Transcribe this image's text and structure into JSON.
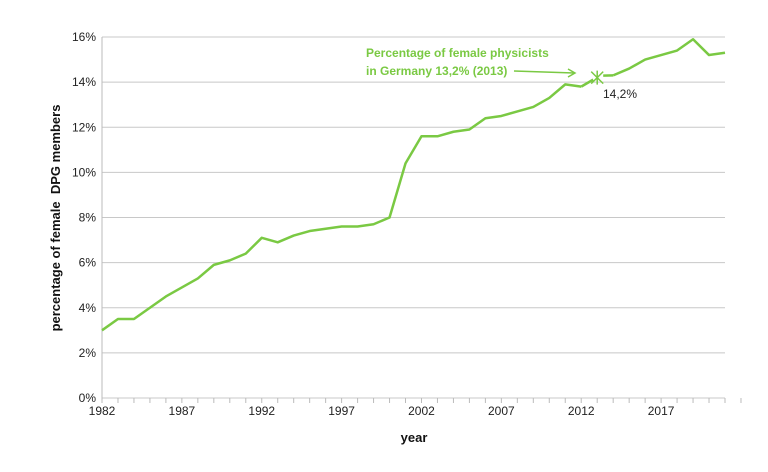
{
  "chart_data": {
    "type": "line",
    "title": "",
    "xlabel": "year",
    "ylabel": "percentage of female  DPG members",
    "xlim": [
      1982,
      2021
    ],
    "ylim": [
      0,
      16
    ],
    "x_ticks": [
      "1982",
      "1987",
      "1992",
      "1997",
      "2002",
      "2007",
      "2012",
      "2017"
    ],
    "y_ticks": [
      "0%",
      "2%",
      "4%",
      "6%",
      "8%",
      "10%",
      "12%",
      "14%",
      "16%"
    ],
    "grid": "horizontal",
    "line_color": "#7ac943",
    "series": [
      {
        "x": [
          1982,
          1983,
          1984,
          1985,
          1986,
          1987,
          1988,
          1989,
          1990,
          1991,
          1992,
          1993,
          1994,
          1995,
          1996,
          1997,
          1998,
          1999,
          2000,
          2001,
          2002,
          2003,
          2004,
          2005,
          2006,
          2007,
          2008,
          2009,
          2010,
          2011,
          2012,
          2013,
          2014,
          2015,
          2016,
          2017,
          2018,
          2019,
          2020,
          2021
        ],
        "values": [
          3.0,
          3.5,
          3.5,
          4.0,
          4.5,
          4.9,
          5.3,
          5.9,
          6.1,
          6.4,
          7.1,
          6.9,
          7.2,
          7.4,
          7.5,
          7.6,
          7.6,
          7.7,
          8.0,
          10.4,
          11.6,
          11.6,
          11.8,
          11.9,
          12.4,
          12.5,
          12.7,
          12.9,
          13.3,
          13.9,
          13.8,
          14.2,
          14.3,
          14.6,
          15.0,
          15.2,
          15.4,
          15.9,
          15.2,
          15.3
        ]
      }
    ],
    "annotations": {
      "marker_label": "14,2%",
      "marker_year": 2013,
      "marker_value": 14.2,
      "note_line1": "Percentage of female physicists",
      "note_line2": "in Germany 13,2% (2013)"
    }
  }
}
